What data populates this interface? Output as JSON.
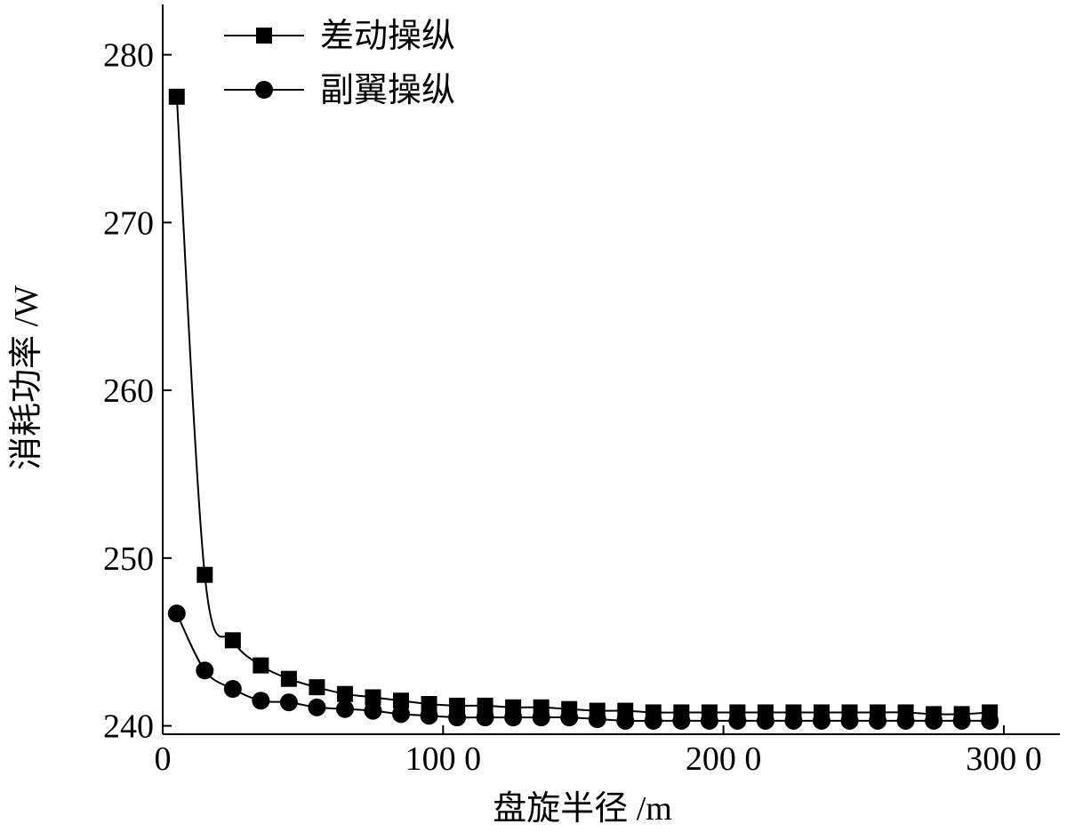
{
  "chart_data": {
    "type": "line",
    "title": "",
    "xlabel": "盘旋半径 /m",
    "ylabel": "消耗功率 /W",
    "xlim": [
      0,
      3200
    ],
    "ylim": [
      239.5,
      283
    ],
    "x_ticks": [
      0,
      1000,
      2000,
      3000
    ],
    "x_tick_labels": [
      "0",
      "100 0",
      "200 0",
      "300 0"
    ],
    "y_ticks": [
      240,
      250,
      260,
      270,
      280
    ],
    "y_tick_labels": [
      "240",
      "250",
      "260",
      "270",
      "280"
    ],
    "legend_position": "top-left",
    "grid": false,
    "x": [
      50,
      150,
      250,
      350,
      450,
      550,
      650,
      750,
      850,
      950,
      1050,
      1150,
      1250,
      1350,
      1450,
      1550,
      1650,
      1750,
      1850,
      1950,
      2050,
      2150,
      2250,
      2350,
      2450,
      2550,
      2650,
      2750,
      2850,
      2950
    ],
    "series": [
      {
        "name": "差动操纵",
        "marker": "square",
        "color": "#000000",
        "values": [
          277.5,
          249.0,
          245.1,
          243.6,
          242.8,
          242.3,
          241.9,
          241.7,
          241.5,
          241.3,
          241.2,
          241.2,
          241.1,
          241.1,
          241.0,
          240.9,
          240.9,
          240.8,
          240.8,
          240.8,
          240.8,
          240.8,
          240.8,
          240.8,
          240.8,
          240.8,
          240.8,
          240.7,
          240.7,
          240.8
        ]
      },
      {
        "name": "副翼操纵",
        "marker": "circle",
        "color": "#000000",
        "values": [
          246.7,
          243.3,
          242.2,
          241.5,
          241.4,
          241.1,
          241.0,
          240.9,
          240.7,
          240.6,
          240.5,
          240.5,
          240.5,
          240.5,
          240.5,
          240.4,
          240.3,
          240.3,
          240.3,
          240.3,
          240.3,
          240.3,
          240.3,
          240.3,
          240.3,
          240.3,
          240.3,
          240.3,
          240.3,
          240.3
        ]
      }
    ]
  }
}
